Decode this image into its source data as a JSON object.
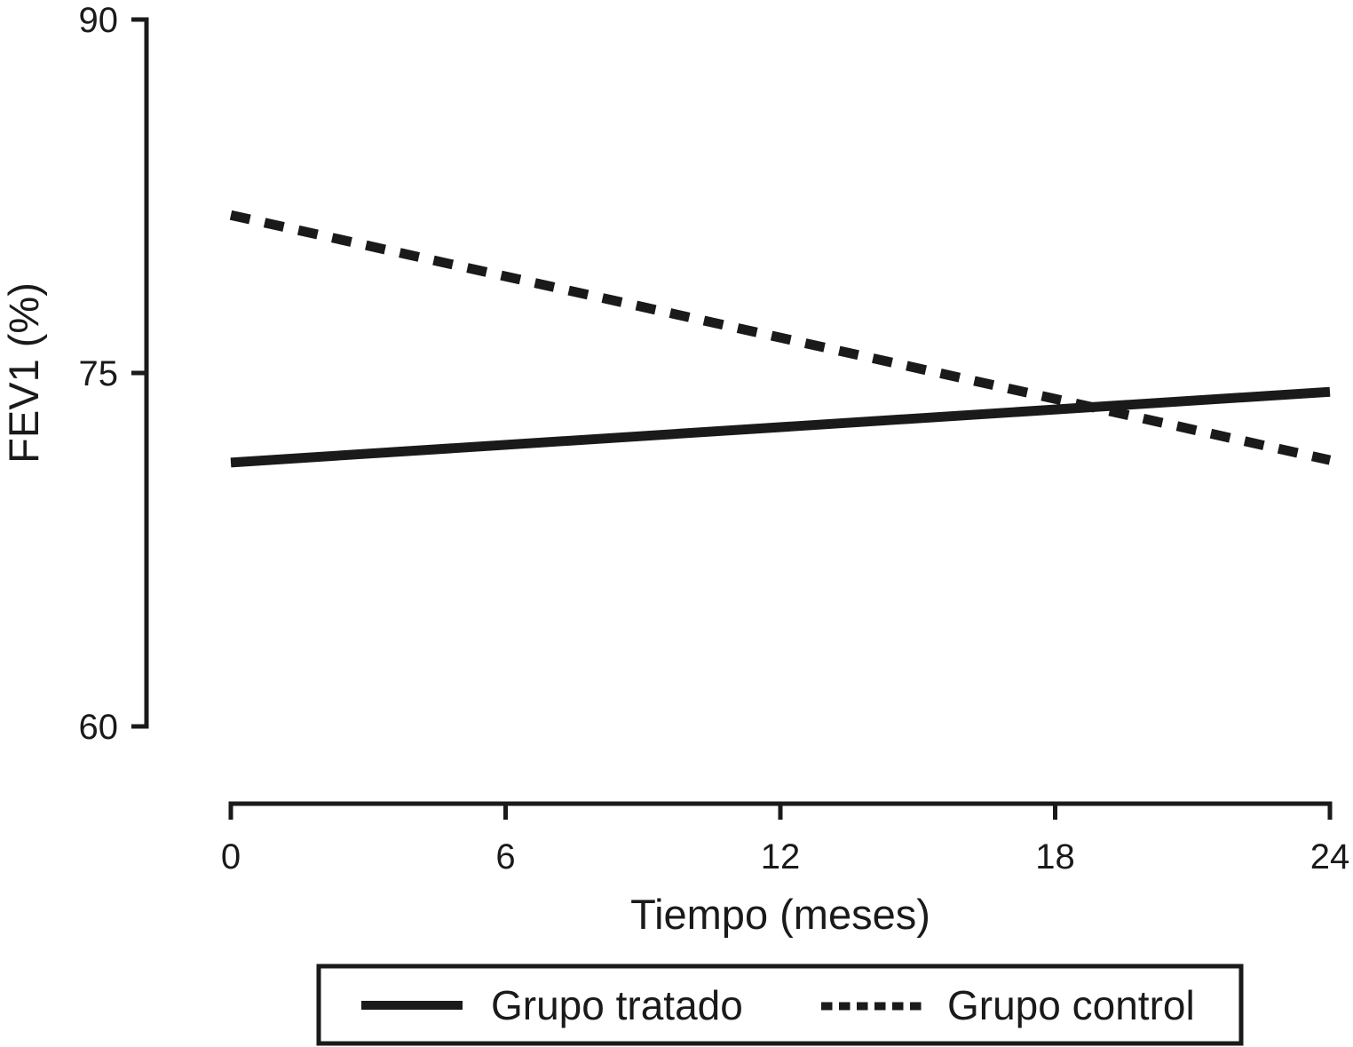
{
  "figure": {
    "background": "#ffffff",
    "ink_color": "#1a1a1a"
  },
  "chart_data": {
    "type": "line",
    "title": "",
    "xlabel": "Tiempo (meses)",
    "ylabel": "FEV1 (%)",
    "xlim": [
      0,
      24
    ],
    "ylim": [
      60,
      90
    ],
    "x_ticks": [
      0,
      6,
      12,
      18,
      24
    ],
    "y_ticks": [
      90,
      75,
      60
    ],
    "grid": false,
    "legend_position": "bottom-outside-boxed",
    "series": [
      {
        "name": "Grupo tratado",
        "style": "solid",
        "x": [
          0,
          24
        ],
        "y": [
          71.2,
          74.2
        ]
      },
      {
        "name": "Grupo control",
        "style": "dashed",
        "x": [
          0,
          24
        ],
        "y": [
          81.7,
          71.3
        ]
      }
    ]
  }
}
